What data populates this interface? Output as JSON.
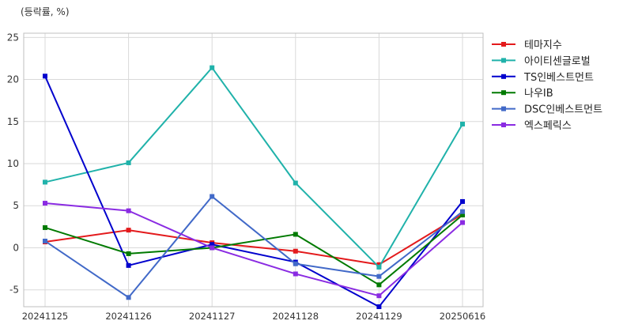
{
  "chart_data": {
    "type": "line",
    "ylabel": "(등락률, %)",
    "categories": [
      "20241125",
      "20241126",
      "20241127",
      "20241128",
      "20241129",
      "20250616"
    ],
    "ylim": [
      -7,
      25.5
    ],
    "yticks": [
      -5,
      0,
      5,
      10,
      15,
      20,
      25
    ],
    "grid": true,
    "legend_position": "right",
    "series": [
      {
        "name": "테마지수",
        "color": "#e31a1c",
        "values": [
          0.7,
          2.1,
          0.6,
          -0.4,
          -2.0,
          4.0
        ]
      },
      {
        "name": "아이티센글로벌",
        "color": "#20b2aa",
        "values": [
          7.8,
          10.1,
          21.4,
          7.7,
          -2.3,
          14.7
        ]
      },
      {
        "name": "TS인베스트먼트",
        "color": "#0000cd",
        "values": [
          20.4,
          -2.1,
          0.4,
          -1.7,
          -7.0,
          5.5
        ]
      },
      {
        "name": "나우IB",
        "color": "#007a00",
        "values": [
          2.4,
          -0.7,
          0.0,
          1.6,
          -4.4,
          3.9
        ]
      },
      {
        "name": "DSC인베스트먼트",
        "color": "#4169c8",
        "values": [
          0.8,
          -5.9,
          6.1,
          -1.9,
          -3.4,
          4.3
        ]
      },
      {
        "name": "엑스페릭스",
        "color": "#8a2be2",
        "values": [
          5.3,
          4.4,
          0.0,
          -3.1,
          -5.7,
          3.0
        ]
      }
    ]
  }
}
